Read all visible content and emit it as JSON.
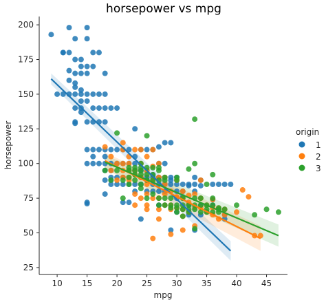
{
  "chart_data": {
    "type": "scatter",
    "title": "horsepower vs mpg",
    "xlabel": "mpg",
    "ylabel": "horsepower",
    "xlim": [
      7,
      48.5
    ],
    "ylim": [
      20,
      206
    ],
    "xticks": [
      10,
      15,
      20,
      25,
      30,
      35,
      40,
      45
    ],
    "yticks": [
      25,
      50,
      75,
      100,
      125,
      150,
      175,
      200
    ],
    "grid": false,
    "legend_title": "origin",
    "legend_position": "right",
    "regression_lines": true,
    "series": [
      {
        "name": "1",
        "color": "#1f77b4",
        "fit": {
          "x": [
            9,
            39
          ],
          "y": [
            161,
            37
          ]
        },
        "band": {
          "lower": [
            157,
            30
          ],
          "upper": [
            165,
            44
          ]
        },
        "points": [
          [
            9,
            193
          ],
          [
            10,
            150
          ],
          [
            11,
            180
          ],
          [
            11,
            180
          ],
          [
            11,
            150
          ],
          [
            12,
            198
          ],
          [
            12,
            180
          ],
          [
            12,
            167
          ],
          [
            12,
            160
          ],
          [
            12,
            150
          ],
          [
            13,
            190
          ],
          [
            13,
            175
          ],
          [
            13,
            165
          ],
          [
            13,
            158
          ],
          [
            13,
            155
          ],
          [
            13,
            150
          ],
          [
            13,
            140
          ],
          [
            13,
            130
          ],
          [
            13,
            129
          ],
          [
            14,
            175
          ],
          [
            14,
            170
          ],
          [
            14,
            165
          ],
          [
            14,
            153
          ],
          [
            14,
            150
          ],
          [
            14,
            145
          ],
          [
            14,
            140
          ],
          [
            14,
            137
          ],
          [
            15,
            198
          ],
          [
            15,
            190
          ],
          [
            15,
            170
          ],
          [
            15,
            165
          ],
          [
            15,
            150
          ],
          [
            15,
            145
          ],
          [
            15,
            130
          ],
          [
            15,
            110
          ],
          [
            15,
            100
          ],
          [
            15,
            72
          ],
          [
            15,
            71
          ],
          [
            16,
            180
          ],
          [
            16,
            170
          ],
          [
            16,
            150
          ],
          [
            16,
            140
          ],
          [
            16,
            130
          ],
          [
            16,
            110
          ],
          [
            16,
            105
          ],
          [
            16,
            100
          ],
          [
            17,
            180
          ],
          [
            17,
            150
          ],
          [
            17,
            140
          ],
          [
            17,
            130
          ],
          [
            17,
            110
          ],
          [
            17,
            100
          ],
          [
            18,
            165
          ],
          [
            18,
            150
          ],
          [
            18,
            140
          ],
          [
            18,
            130
          ],
          [
            18,
            110
          ],
          [
            18,
            105
          ],
          [
            18,
            100
          ],
          [
            18,
            95
          ],
          [
            18,
            88
          ],
          [
            18,
            78
          ],
          [
            19,
            140
          ],
          [
            19,
            110
          ],
          [
            19,
            100
          ],
          [
            19,
            95
          ],
          [
            19,
            90
          ],
          [
            19,
            88
          ],
          [
            19,
            85
          ],
          [
            20,
            140
          ],
          [
            20,
            110
          ],
          [
            20,
            100
          ],
          [
            20,
            90
          ],
          [
            20,
            85
          ],
          [
            21,
            110
          ],
          [
            21,
            100
          ],
          [
            21,
            90
          ],
          [
            21,
            85
          ],
          [
            21,
            72
          ],
          [
            22,
            110
          ],
          [
            22,
            100
          ],
          [
            22,
            95
          ],
          [
            22,
            85
          ],
          [
            22,
            72
          ],
          [
            23,
            125
          ],
          [
            23,
            105
          ],
          [
            23,
            100
          ],
          [
            23,
            95
          ],
          [
            23,
            85
          ],
          [
            23,
            80
          ],
          [
            24,
            110
          ],
          [
            24,
            95
          ],
          [
            24,
            90
          ],
          [
            24,
            85
          ],
          [
            24,
            60
          ],
          [
            25,
            110
          ],
          [
            25,
            95
          ],
          [
            25,
            90
          ],
          [
            25,
            88
          ],
          [
            25,
            80
          ],
          [
            26,
            110
          ],
          [
            26,
            92
          ],
          [
            26,
            90
          ],
          [
            26,
            85
          ],
          [
            26,
            80
          ],
          [
            27,
            112
          ],
          [
            27,
            100
          ],
          [
            27,
            90
          ],
          [
            27,
            85
          ],
          [
            27,
            80
          ],
          [
            27,
            70
          ],
          [
            28,
            115
          ],
          [
            28,
            100
          ],
          [
            28,
            90
          ],
          [
            28,
            85
          ],
          [
            28,
            80
          ],
          [
            28,
            70
          ],
          [
            29,
            115
          ],
          [
            29,
            90
          ],
          [
            29,
            88
          ],
          [
            29,
            85
          ],
          [
            29,
            52
          ],
          [
            30,
            90
          ],
          [
            30,
            85
          ],
          [
            30,
            80
          ],
          [
            30,
            75
          ],
          [
            30,
            65
          ],
          [
            31,
            85
          ],
          [
            31,
            80
          ],
          [
            31,
            76
          ],
          [
            32,
            85
          ],
          [
            32,
            84
          ],
          [
            32,
            70
          ],
          [
            32,
            63
          ],
          [
            33,
            90
          ],
          [
            33,
            85
          ],
          [
            33,
            80
          ],
          [
            33,
            52
          ],
          [
            34,
            88
          ],
          [
            34,
            84
          ],
          [
            34,
            70
          ],
          [
            34,
            63
          ],
          [
            36,
            85
          ],
          [
            36,
            74
          ],
          [
            36,
            70
          ],
          [
            37,
            85
          ],
          [
            38,
            85
          ],
          [
            38,
            63
          ],
          [
            38,
            60
          ],
          [
            39,
            85
          ]
        ]
      },
      {
        "name": "2",
        "color": "#ff7f0e",
        "fit": {
          "x": [
            18,
            44
          ],
          "y": [
            102,
            46
          ]
        },
        "band": {
          "lower": [
            96,
            37
          ],
          "upper": [
            108,
            55
          ]
        },
        "points": [
          [
            18,
            112
          ],
          [
            19,
            105
          ],
          [
            19,
            95
          ],
          [
            20,
            100
          ],
          [
            20,
            88
          ],
          [
            21,
            115
          ],
          [
            21,
            110
          ],
          [
            21,
            100
          ],
          [
            21,
            95
          ],
          [
            21,
            90
          ],
          [
            22,
            105
          ],
          [
            22,
            100
          ],
          [
            22,
            95
          ],
          [
            22,
            90
          ],
          [
            22,
            88
          ],
          [
            23,
            110
          ],
          [
            23,
            95
          ],
          [
            23,
            92
          ],
          [
            23,
            78
          ],
          [
            23,
            70
          ],
          [
            24,
            110
          ],
          [
            24,
            100
          ],
          [
            24,
            90
          ],
          [
            24,
            75
          ],
          [
            25,
            105
          ],
          [
            25,
            95
          ],
          [
            25,
            85
          ],
          [
            25,
            78
          ],
          [
            25,
            67
          ],
          [
            25,
            70
          ],
          [
            26,
            110
          ],
          [
            26,
            98
          ],
          [
            26,
            88
          ],
          [
            26,
            46
          ],
          [
            26,
            75
          ],
          [
            27,
            100
          ],
          [
            27,
            90
          ],
          [
            27,
            75
          ],
          [
            27,
            60
          ],
          [
            27,
            67
          ],
          [
            28,
            90
          ],
          [
            28,
            85
          ],
          [
            28,
            78
          ],
          [
            28,
            70
          ],
          [
            29,
            80
          ],
          [
            29,
            70
          ],
          [
            29,
            67
          ],
          [
            29,
            49
          ],
          [
            30,
            88
          ],
          [
            30,
            76
          ],
          [
            30,
            68
          ],
          [
            31,
            80
          ],
          [
            31,
            75
          ],
          [
            31,
            67
          ],
          [
            31,
            62
          ],
          [
            31,
            52
          ],
          [
            32,
            77
          ],
          [
            32,
            72
          ],
          [
            32,
            65
          ],
          [
            33,
            78
          ],
          [
            33,
            68
          ],
          [
            33,
            55
          ],
          [
            34,
            88
          ],
          [
            34,
            75
          ],
          [
            34,
            68
          ],
          [
            35,
            70
          ],
          [
            35,
            65
          ],
          [
            36,
            74
          ],
          [
            36,
            68
          ],
          [
            36,
            63
          ],
          [
            37,
            68
          ],
          [
            37,
            60
          ],
          [
            38,
            67
          ],
          [
            38,
            63
          ],
          [
            40,
            65
          ],
          [
            41,
            81
          ],
          [
            42,
            76
          ],
          [
            43,
            48
          ],
          [
            44,
            48
          ]
        ]
      },
      {
        "name": "3",
        "color": "#2ca02c",
        "fit": {
          "x": [
            18,
            47
          ],
          "y": [
            101,
            48
          ]
        },
        "band": {
          "lower": [
            96,
            40
          ],
          "upper": [
            106,
            56
          ]
        },
        "points": [
          [
            18,
            95
          ],
          [
            19,
            88
          ],
          [
            20,
            122
          ],
          [
            20,
            95
          ],
          [
            21,
            88
          ],
          [
            21,
            75
          ],
          [
            22,
            97
          ],
          [
            22,
            95
          ],
          [
            22,
            90
          ],
          [
            22,
            85
          ],
          [
            23,
            97
          ],
          [
            23,
            95
          ],
          [
            23,
            92
          ],
          [
            23,
            88
          ],
          [
            24,
            100
          ],
          [
            24,
            97
          ],
          [
            24,
            95
          ],
          [
            24,
            92
          ],
          [
            24,
            85
          ],
          [
            24,
            82
          ],
          [
            25,
            120
          ],
          [
            25,
            97
          ],
          [
            25,
            92
          ],
          [
            25,
            88
          ],
          [
            25,
            75
          ],
          [
            26,
            97
          ],
          [
            26,
            92
          ],
          [
            26,
            88
          ],
          [
            26,
            78
          ],
          [
            27,
            97
          ],
          [
            27,
            95
          ],
          [
            27,
            88
          ],
          [
            27,
            75
          ],
          [
            27,
            70
          ],
          [
            28,
            90
          ],
          [
            28,
            88
          ],
          [
            28,
            75
          ],
          [
            28,
            70
          ],
          [
            29,
            75
          ],
          [
            29,
            70
          ],
          [
            29,
            68
          ],
          [
            30,
            90
          ],
          [
            30,
            88
          ],
          [
            30,
            70
          ],
          [
            30,
            68
          ],
          [
            30,
            65
          ],
          [
            31,
            75
          ],
          [
            31,
            70
          ],
          [
            31,
            67
          ],
          [
            31,
            62
          ],
          [
            32,
            96
          ],
          [
            32,
            70
          ],
          [
            32,
            67
          ],
          [
            32,
            65
          ],
          [
            33,
            132
          ],
          [
            33,
            100
          ],
          [
            33,
            75
          ],
          [
            33,
            70
          ],
          [
            33,
            67
          ],
          [
            33,
            53
          ],
          [
            34,
            75
          ],
          [
            34,
            70
          ],
          [
            34,
            65
          ],
          [
            35,
            85
          ],
          [
            35,
            70
          ],
          [
            35,
            67
          ],
          [
            35,
            65
          ],
          [
            36,
            92
          ],
          [
            36,
            75
          ],
          [
            36,
            70
          ],
          [
            36,
            65
          ],
          [
            37,
            68
          ],
          [
            37,
            67
          ],
          [
            37,
            65
          ],
          [
            38,
            67
          ],
          [
            40,
            70
          ],
          [
            43,
            63
          ],
          [
            45,
            67
          ],
          [
            47,
            65
          ]
        ]
      }
    ]
  }
}
